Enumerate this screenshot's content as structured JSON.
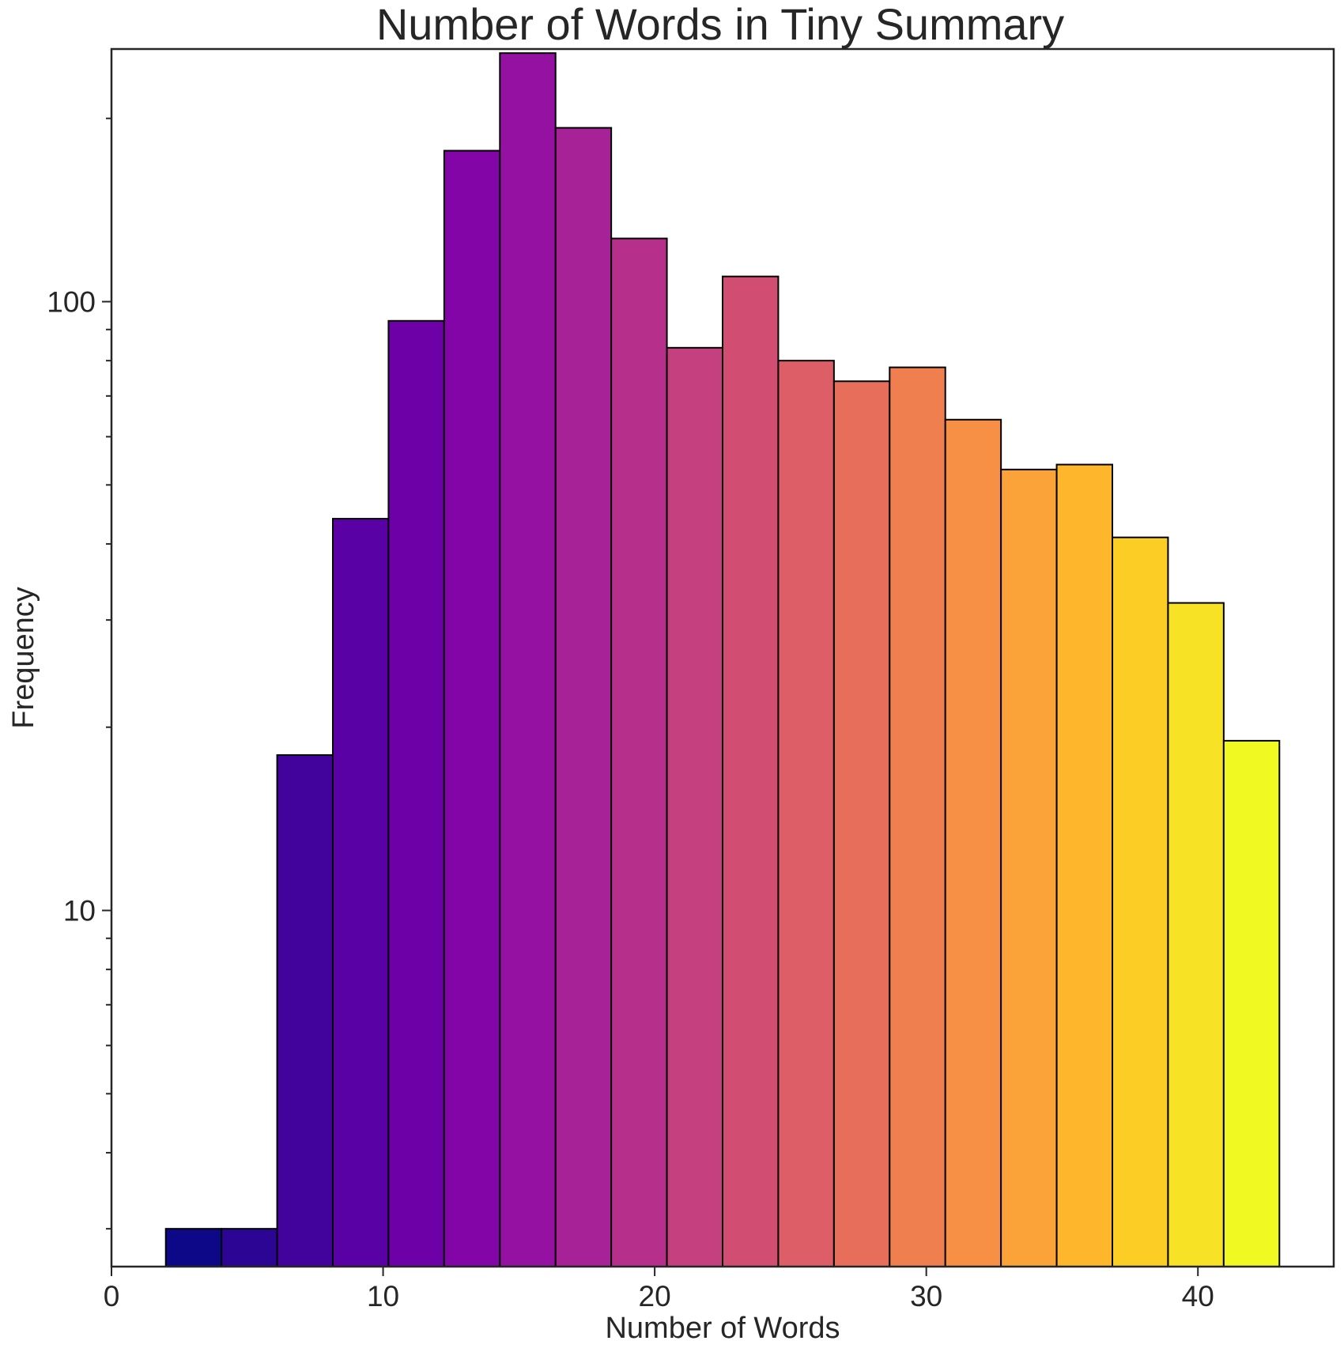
{
  "chart_data": {
    "type": "bar",
    "title": "Number of Words in Tiny Summary",
    "xlabel": "Number of Words",
    "ylabel": "Frequency",
    "yscale": "log",
    "xlim": [
      0,
      45
    ],
    "ylim": [
      2.6,
      260
    ],
    "grid": false,
    "colormap": "plasma",
    "bins": [
      {
        "x0": 2.0,
        "x1": 4.05,
        "count": 3,
        "color": "#0d0887"
      },
      {
        "x0": 4.05,
        "x1": 6.1,
        "count": 3,
        "color": "#2d0594"
      },
      {
        "x0": 6.1,
        "x1": 8.15,
        "count": 18,
        "color": "#42039d"
      },
      {
        "x0": 8.15,
        "x1": 10.2,
        "count": 44,
        "color": "#5901a5"
      },
      {
        "x0": 10.2,
        "x1": 12.25,
        "count": 93,
        "color": "#6e00a8"
      },
      {
        "x0": 12.25,
        "x1": 14.3,
        "count": 177,
        "color": "#8405a7"
      },
      {
        "x0": 14.3,
        "x1": 16.35,
        "count": 256,
        "color": "#9511a1"
      },
      {
        "x0": 16.35,
        "x1": 18.4,
        "count": 193,
        "color": "#a72197"
      },
      {
        "x0": 18.4,
        "x1": 20.45,
        "count": 127,
        "color": "#b6308b"
      },
      {
        "x0": 20.45,
        "x1": 22.5,
        "count": 84,
        "color": "#c5407e"
      },
      {
        "x0": 22.5,
        "x1": 24.55,
        "count": 110,
        "color": "#d14e72"
      },
      {
        "x0": 24.55,
        "x1": 26.6,
        "count": 80,
        "color": "#dd5e66"
      },
      {
        "x0": 26.6,
        "x1": 28.65,
        "count": 74,
        "color": "#e76e5b"
      },
      {
        "x0": 28.65,
        "x1": 30.7,
        "count": 78,
        "color": "#ef7f4f"
      },
      {
        "x0": 30.7,
        "x1": 32.75,
        "count": 64,
        "color": "#f79044"
      },
      {
        "x0": 32.75,
        "x1": 34.8,
        "count": 53,
        "color": "#fba238"
      },
      {
        "x0": 34.8,
        "x1": 36.85,
        "count": 54,
        "color": "#feb72d"
      },
      {
        "x0": 36.85,
        "x1": 38.9,
        "count": 41,
        "color": "#fccd25"
      },
      {
        "x0": 38.9,
        "x1": 40.95,
        "count": 32,
        "color": "#f7e225"
      },
      {
        "x0": 40.95,
        "x1": 43.0,
        "count": 19,
        "color": "#f0f921"
      }
    ],
    "xticks": [
      {
        "value": 0,
        "label": "0"
      },
      {
        "value": 10,
        "label": "10"
      },
      {
        "value": 20,
        "label": "20"
      },
      {
        "value": 30,
        "label": "30"
      },
      {
        "value": 40,
        "label": "40"
      }
    ],
    "yticks_major": [
      {
        "value": 10,
        "label": "10"
      },
      {
        "value": 100,
        "label": "100"
      }
    ],
    "yticks_minor": [
      3,
      4,
      5,
      6,
      7,
      8,
      9,
      20,
      30,
      40,
      50,
      60,
      70,
      80,
      90,
      200
    ]
  }
}
